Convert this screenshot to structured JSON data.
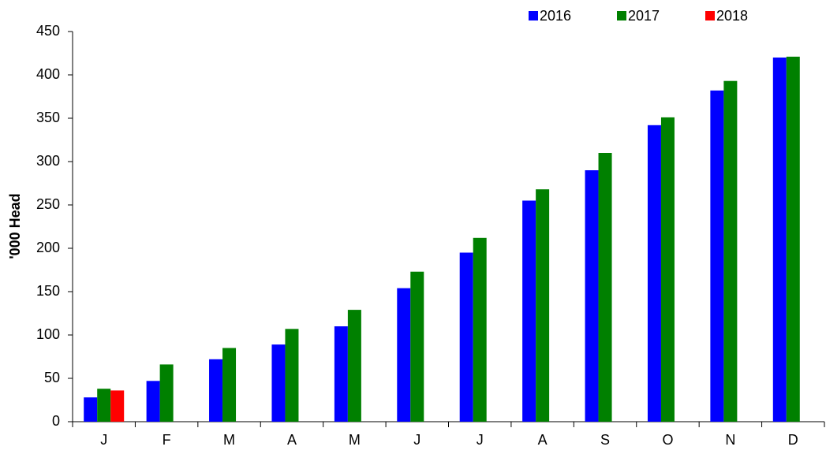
{
  "chart_data": {
    "type": "bar",
    "y_label": "'000 Head",
    "categories": [
      "J",
      "F",
      "M",
      "A",
      "M",
      "J",
      "J",
      "A",
      "S",
      "O",
      "N",
      "D"
    ],
    "series": [
      {
        "name": "2016",
        "color": "#0000ff",
        "values": [
          28,
          47,
          72,
          89,
          110,
          154,
          195,
          255,
          290,
          342,
          382,
          420
        ]
      },
      {
        "name": "2017",
        "color": "#008000",
        "values": [
          38,
          66,
          85,
          107,
          129,
          173,
          212,
          268,
          310,
          351,
          393,
          421
        ]
      },
      {
        "name": "2018",
        "color": "#ff0000",
        "values": [
          36,
          null,
          null,
          null,
          null,
          null,
          null,
          null,
          null,
          null,
          null,
          null
        ]
      }
    ],
    "ylim": [
      0,
      450
    ],
    "yticks": [
      0,
      50,
      100,
      150,
      200,
      250,
      300,
      350,
      400,
      450
    ]
  }
}
